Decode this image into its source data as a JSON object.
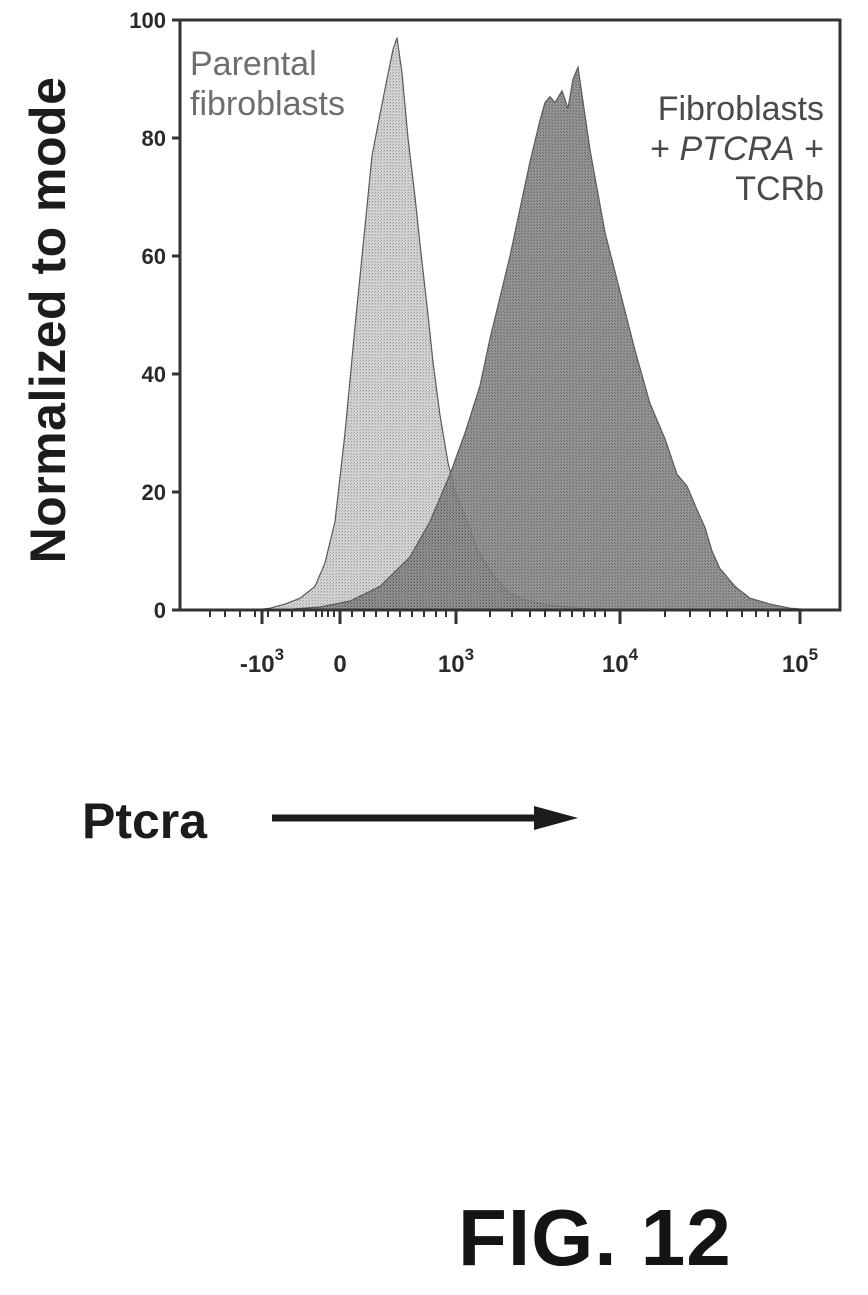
{
  "chart_data": {
    "type": "area",
    "ylabel": "Normalized to mode",
    "xlabel": "Ptcra",
    "ylim": [
      0,
      100
    ],
    "yticks": [
      0,
      20,
      40,
      60,
      80,
      100
    ],
    "x_tick_labels": [
      {
        "base": "-10",
        "exp": "3"
      },
      {
        "base": "0",
        "exp": ""
      },
      {
        "base": "10",
        "exp": "3"
      },
      {
        "base": "10",
        "exp": "4"
      },
      {
        "base": "10",
        "exp": "5"
      }
    ],
    "series": [
      {
        "label_lines": [
          "Parental",
          "fibroblasts"
        ],
        "color": "#c8c8c8",
        "x": [
          180,
          205,
          230,
          255,
          270,
          285,
          300,
          315,
          325,
          335,
          345,
          355,
          365,
          372,
          380,
          387,
          393,
          397,
          402,
          408,
          415,
          420,
          428,
          433,
          440,
          448,
          455,
          465,
          478,
          493,
          508,
          528,
          550,
          580,
          610,
          640,
          680,
          720,
          760,
          800,
          840
        ],
        "y": [
          0,
          0,
          0,
          0,
          0.3,
          1,
          2,
          4,
          8,
          15,
          30,
          48,
          65,
          77,
          84,
          90,
          95,
          97,
          91,
          80,
          70,
          62,
          50,
          42,
          33,
          25,
          20,
          16,
          10,
          6,
          3,
          1.5,
          0.8,
          0.3,
          0,
          0,
          0,
          0,
          0,
          0,
          0
        ]
      },
      {
        "label_lines": [
          "Fibroblasts",
          "+ PTCRA +",
          "TCRb"
        ],
        "color": "#7e7e7e",
        "x": [
          180,
          280,
          320,
          350,
          380,
          410,
          430,
          450,
          465,
          480,
          490,
          500,
          510,
          520,
          530,
          540,
          545,
          550,
          555,
          562,
          568,
          573,
          578,
          590,
          605,
          620,
          635,
          650,
          665,
          677,
          687,
          697,
          705,
          712,
          720,
          735,
          750,
          770,
          790,
          815,
          840
        ],
        "y": [
          0,
          0,
          0.5,
          1.5,
          4,
          9,
          15,
          23,
          30,
          38,
          46,
          53,
          60,
          68,
          76,
          83,
          86,
          87,
          86,
          88,
          85,
          90,
          92,
          78,
          64,
          54,
          44,
          35,
          29,
          23,
          21,
          17,
          14,
          10,
          7,
          4,
          2,
          1,
          0.3,
          0,
          0
        ]
      }
    ]
  },
  "fig_label": "FIG. 12"
}
